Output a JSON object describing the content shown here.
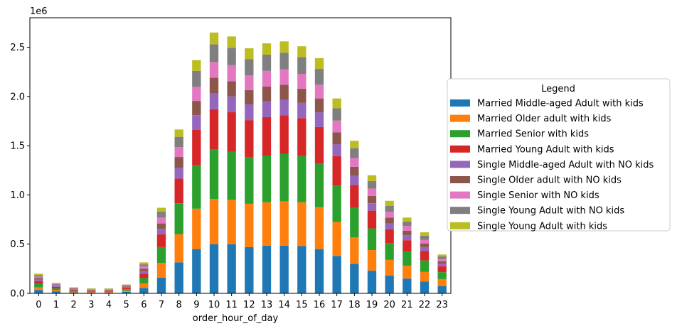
{
  "chart_data": {
    "type": "bar",
    "stacked": true,
    "xlabel": "order_hour_of_day",
    "ylabel": "",
    "y_offset_label": "1e6",
    "ylim": [
      0,
      2.8
    ],
    "yticks": [
      "0.0",
      "0.5",
      "1.0",
      "1.5",
      "2.0",
      "2.5"
    ],
    "ytick_values": [
      0,
      0.5,
      1.0,
      1.5,
      2.0,
      2.5
    ],
    "categories": [
      "0",
      "1",
      "2",
      "3",
      "4",
      "5",
      "6",
      "7",
      "8",
      "9",
      "10",
      "11",
      "12",
      "13",
      "14",
      "15",
      "16",
      "17",
      "18",
      "19",
      "20",
      "21",
      "22",
      "23"
    ],
    "legend_title": "Legend",
    "legend_placement": "center-right-outside",
    "grid": false,
    "series": [
      {
        "name": "Married Middle-aged Adult with kids",
        "color": "#1f77b4",
        "values": [
          0.035,
          0.018,
          0.01,
          0.008,
          0.008,
          0.015,
          0.055,
          0.16,
          0.315,
          0.45,
          0.5,
          0.5,
          0.47,
          0.485,
          0.485,
          0.48,
          0.45,
          0.38,
          0.3,
          0.23,
          0.18,
          0.15,
          0.12,
          0.075
        ]
      },
      {
        "name": "Married Older adult with kids",
        "color": "#ff7f0e",
        "values": [
          0.025,
          0.014,
          0.008,
          0.007,
          0.007,
          0.012,
          0.045,
          0.15,
          0.285,
          0.41,
          0.46,
          0.45,
          0.44,
          0.44,
          0.45,
          0.445,
          0.425,
          0.345,
          0.27,
          0.21,
          0.16,
          0.13,
          0.1,
          0.07
        ]
      },
      {
        "name": "Married Senior with kids",
        "color": "#2ca02c",
        "values": [
          0.035,
          0.018,
          0.01,
          0.008,
          0.008,
          0.015,
          0.055,
          0.16,
          0.315,
          0.44,
          0.5,
          0.49,
          0.47,
          0.475,
          0.48,
          0.47,
          0.445,
          0.37,
          0.3,
          0.22,
          0.17,
          0.145,
          0.115,
          0.07
        ]
      },
      {
        "name": "Married Young Adult with kids",
        "color": "#d62728",
        "values": [
          0.03,
          0.016,
          0.009,
          0.007,
          0.007,
          0.013,
          0.045,
          0.13,
          0.25,
          0.36,
          0.41,
          0.4,
          0.38,
          0.39,
          0.395,
          0.385,
          0.37,
          0.3,
          0.23,
          0.18,
          0.14,
          0.115,
          0.095,
          0.06
        ]
      },
      {
        "name": "Single Middle-aged Adult with NO kids",
        "color": "#9467bd",
        "values": [
          0.015,
          0.008,
          0.005,
          0.004,
          0.004,
          0.007,
          0.025,
          0.055,
          0.11,
          0.15,
          0.16,
          0.16,
          0.16,
          0.16,
          0.16,
          0.155,
          0.15,
          0.12,
          0.095,
          0.075,
          0.06,
          0.05,
          0.04,
          0.025
        ]
      },
      {
        "name": "Single Older adult with NO kids",
        "color": "#8c564b",
        "values": [
          0.015,
          0.008,
          0.005,
          0.004,
          0.004,
          0.007,
          0.025,
          0.055,
          0.11,
          0.145,
          0.16,
          0.155,
          0.145,
          0.15,
          0.15,
          0.145,
          0.14,
          0.12,
          0.09,
          0.075,
          0.06,
          0.045,
          0.035,
          0.025
        ]
      },
      {
        "name": "Single Senior with NO kids",
        "color": "#e377c2",
        "values": [
          0.015,
          0.008,
          0.005,
          0.004,
          0.004,
          0.007,
          0.025,
          0.06,
          0.1,
          0.145,
          0.16,
          0.165,
          0.15,
          0.16,
          0.155,
          0.15,
          0.14,
          0.12,
          0.09,
          0.075,
          0.06,
          0.05,
          0.04,
          0.025
        ]
      },
      {
        "name": "Single Young Adult with NO kids",
        "color": "#7f7f7f",
        "values": [
          0.015,
          0.008,
          0.005,
          0.004,
          0.004,
          0.007,
          0.02,
          0.06,
          0.105,
          0.16,
          0.18,
          0.175,
          0.165,
          0.165,
          0.17,
          0.17,
          0.16,
          0.125,
          0.1,
          0.075,
          0.06,
          0.045,
          0.04,
          0.025
        ]
      },
      {
        "name": "Single Young Adult with kids",
        "color": "#bcbd22",
        "values": [
          0.015,
          0.007,
          0.004,
          0.004,
          0.004,
          0.007,
          0.02,
          0.04,
          0.075,
          0.11,
          0.12,
          0.115,
          0.11,
          0.115,
          0.115,
          0.11,
          0.11,
          0.1,
          0.075,
          0.06,
          0.05,
          0.04,
          0.035,
          0.02
        ]
      }
    ]
  }
}
